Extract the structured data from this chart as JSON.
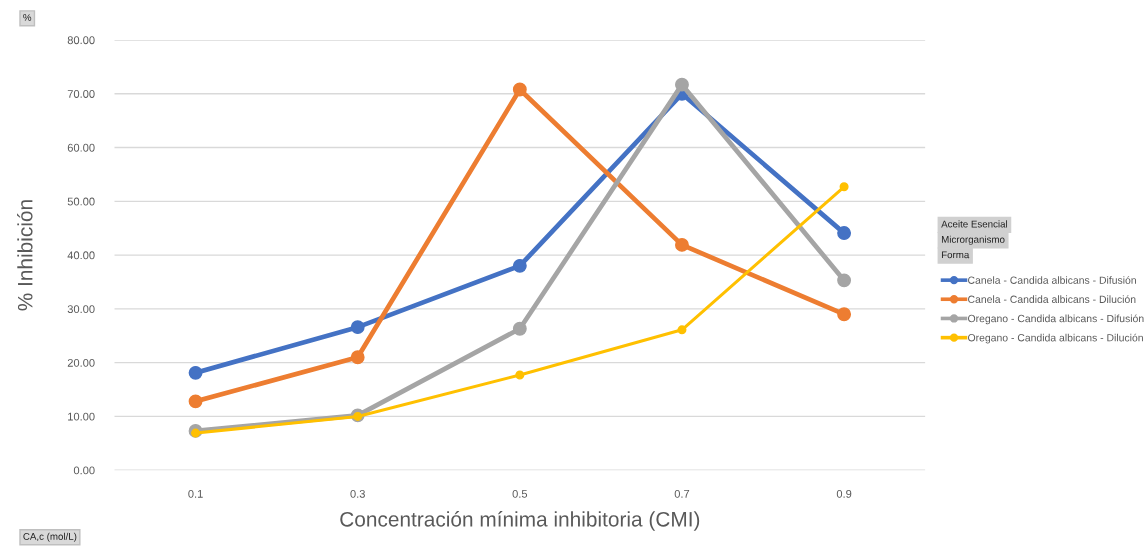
{
  "chart_data": {
    "type": "line",
    "xlabel": "Concentración mínima inhibitoria (CMI)",
    "ylabel": "% Inhibición",
    "categories": [
      "0.1",
      "0.3",
      "0.5",
      "0.7",
      "0.9"
    ],
    "series": [
      {
        "name": "Canela - Candida albicans - Difusión",
        "color": "#4472c4",
        "values": [
          18.1,
          26.6,
          38.0,
          70.0,
          44.1
        ]
      },
      {
        "name": "Canela - Candida albicans - Dilución",
        "color": "#ed7d31",
        "values": [
          12.8,
          21.0,
          70.8,
          41.9,
          29.0
        ]
      },
      {
        "name": "Oregano - Candida albicans - Difusión",
        "color": "#a5a5a5",
        "values": [
          7.3,
          10.2,
          26.3,
          71.7,
          35.3
        ]
      },
      {
        "name": "Oregano - Candida albicans - Dilución",
        "color": "#ffc000",
        "values": [
          6.9,
          10.0,
          17.7,
          26.1,
          52.7
        ]
      }
    ],
    "ylim": [
      0,
      80
    ],
    "yticks": [
      {
        "value": 0,
        "label": "0.00"
      },
      {
        "value": 10,
        "label": "10.00"
      },
      {
        "value": 20,
        "label": "20.00"
      },
      {
        "value": 30,
        "label": "30.00"
      },
      {
        "value": 40,
        "label": "40.00"
      },
      {
        "value": 50,
        "label": "50.00"
      },
      {
        "value": 60,
        "label": "60.00"
      },
      {
        "value": 70,
        "label": "70.00"
      },
      {
        "value": 80,
        "label": "80.00"
      }
    ],
    "grid": "y",
    "legend": "right",
    "marker": "circle",
    "line_style": "solid",
    "annotations": [
      "%",
      "CA,c (mol/L)",
      "Aceite Esencial",
      "Microrganismo",
      "Forma"
    ]
  }
}
